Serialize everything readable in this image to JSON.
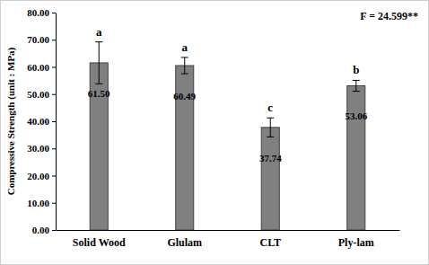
{
  "chart_data": {
    "type": "bar",
    "y_label": "Compressive Strength (unit : MPa)",
    "annotation": "F = 24.599**",
    "categories": [
      "Solid Wood",
      "Glulam",
      "CLT",
      "Ply-lam"
    ],
    "values": [
      61.5,
      60.49,
      37.74,
      53.06
    ],
    "value_labels": [
      "61.50",
      "60.49",
      "37.74",
      "53.06"
    ],
    "errors": [
      7.7,
      3.0,
      3.5,
      2.0
    ],
    "group_letters": [
      "a",
      "a",
      "c",
      "b"
    ],
    "color": "#808080",
    "data_labels": true,
    "grid": false,
    "ylim": [
      0,
      80
    ],
    "yticks": [
      {
        "value": 0,
        "label": "0.00"
      },
      {
        "value": 10,
        "label": "10.00"
      },
      {
        "value": 20,
        "label": "20.00"
      },
      {
        "value": 30,
        "label": "30.00"
      },
      {
        "value": 40,
        "label": "40.00"
      },
      {
        "value": 50,
        "label": "50.00"
      },
      {
        "value": 60,
        "label": "60.00"
      },
      {
        "value": 70,
        "label": "70.00"
      },
      {
        "value": 80,
        "label": "80.00"
      }
    ]
  }
}
